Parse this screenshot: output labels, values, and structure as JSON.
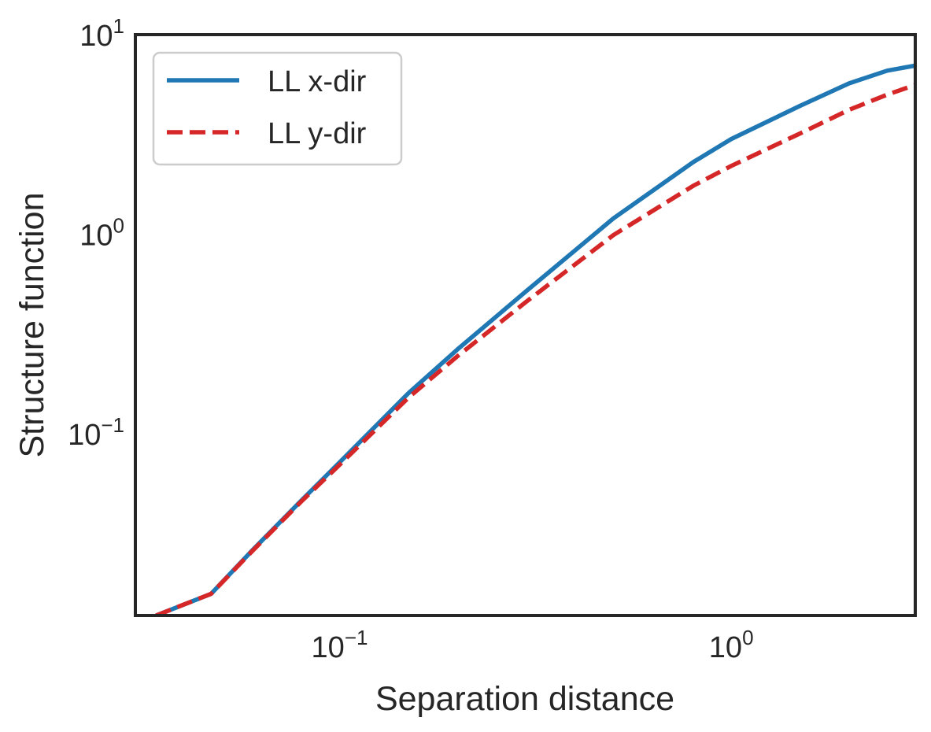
{
  "chart_data": {
    "type": "line",
    "title": "",
    "xlabel": "Separation distance",
    "ylabel": "Structure function",
    "x_scale": "log",
    "y_scale": "log",
    "xlim": [
      0.0301,
      2.95
    ],
    "ylim": [
      0.0123,
      10
    ],
    "grid": false,
    "legend_position": "upper-left",
    "x_ticks": [
      {
        "value": 0.1,
        "base": "10",
        "exp": "−1"
      },
      {
        "value": 1,
        "base": "10",
        "exp": "0"
      }
    ],
    "y_ticks": [
      {
        "value": 0.1,
        "base": "10",
        "exp": "−1"
      },
      {
        "value": 1,
        "base": "10",
        "exp": "0"
      },
      {
        "value": 10,
        "base": "10",
        "exp": "1"
      }
    ],
    "series": [
      {
        "name": "LL x-dir",
        "color": "#1f77b4",
        "style": "solid",
        "x": [
          0.034,
          0.047,
          0.06,
          0.08,
          0.1,
          0.15,
          0.2,
          0.3,
          0.5,
          0.8,
          1.0,
          1.5,
          2.0,
          2.5,
          2.95
        ],
        "y": [
          0.0123,
          0.0158,
          0.0262,
          0.0465,
          0.072,
          0.16,
          0.265,
          0.52,
          1.2,
          2.3,
          3.0,
          4.4,
          5.7,
          6.6,
          7.0
        ]
      },
      {
        "name": "LL y-dir",
        "color": "#d62728",
        "style": "dashed",
        "x": [
          0.034,
          0.047,
          0.06,
          0.08,
          0.1,
          0.15,
          0.2,
          0.3,
          0.5,
          0.8,
          1.0,
          1.5,
          2.0,
          2.5,
          2.95
        ],
        "y": [
          0.0123,
          0.0158,
          0.026,
          0.046,
          0.07,
          0.152,
          0.245,
          0.46,
          0.99,
          1.75,
          2.2,
          3.2,
          4.2,
          5.0,
          5.6
        ]
      }
    ]
  }
}
